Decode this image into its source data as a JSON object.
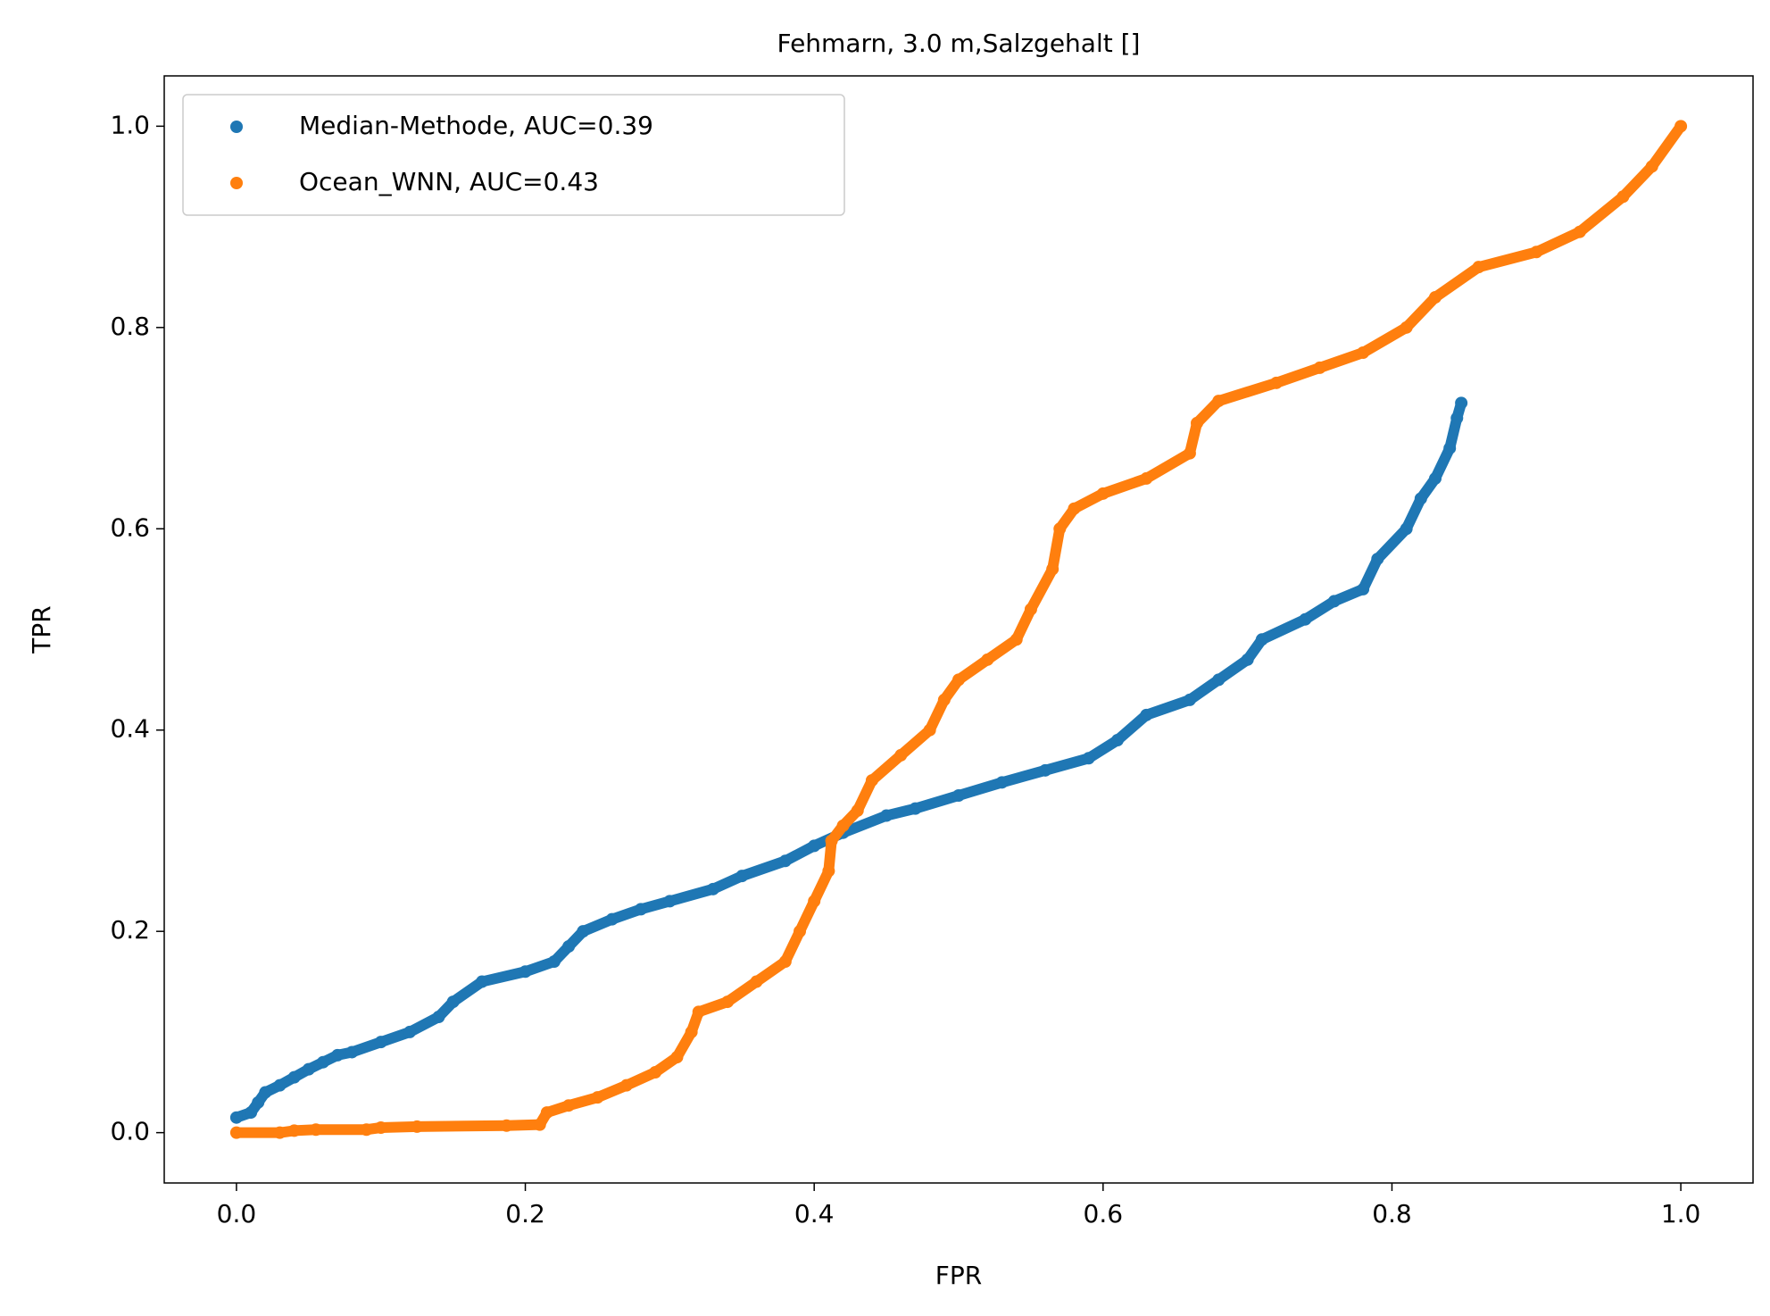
{
  "chart_data": {
    "type": "scatter",
    "title": "Fehmarn, 3.0 m,Salzgehalt []",
    "xlabel": "FPR",
    "ylabel": "TPR",
    "xlim": [
      -0.05,
      1.05
    ],
    "ylim": [
      -0.05,
      1.05
    ],
    "xticks": [
      {
        "value": 0,
        "label": "0.0"
      },
      0.2,
      0.4,
      0.6,
      0.8,
      {
        "value": 1,
        "label": "1.0"
      }
    ],
    "yticks": [
      {
        "value": 0,
        "label": "0.0"
      },
      0.2,
      0.4,
      0.6,
      0.8,
      {
        "value": 1,
        "label": "1.0"
      }
    ],
    "grid": false,
    "legend": "upper left",
    "series": [
      {
        "name": "Median-Methode, AUC=0.39",
        "color": "#1f77b4",
        "x": [
          0,
          0.01,
          0.015,
          0.02,
          0.03,
          0.04,
          0.05,
          0.06,
          0.07,
          0.08,
          0.1,
          0.12,
          0.14,
          0.15,
          0.17,
          0.2,
          0.22,
          0.23,
          0.24,
          0.26,
          0.28,
          0.3,
          0.33,
          0.35,
          0.38,
          0.4,
          0.42,
          0.45,
          0.47,
          0.5,
          0.53,
          0.56,
          0.59,
          0.61,
          0.63,
          0.66,
          0.68,
          0.7,
          0.71,
          0.74,
          0.76,
          0.78,
          0.79,
          0.81,
          0.82,
          0.83,
          0.84,
          0.845,
          0.848
        ],
        "values": [
          0.015,
          0.02,
          0.03,
          0.04,
          0.047,
          0.055,
          0.063,
          0.07,
          0.077,
          0.08,
          0.09,
          0.1,
          0.115,
          0.13,
          0.15,
          0.16,
          0.17,
          0.185,
          0.2,
          0.212,
          0.222,
          0.23,
          0.242,
          0.255,
          0.27,
          0.285,
          0.298,
          0.315,
          0.322,
          0.335,
          0.348,
          0.36,
          0.372,
          0.39,
          0.415,
          0.43,
          0.45,
          0.47,
          0.49,
          0.51,
          0.528,
          0.54,
          0.57,
          0.6,
          0.63,
          0.65,
          0.68,
          0.71,
          0.725
        ]
      },
      {
        "name": "Ocean_WNN, AUC=0.43",
        "color": "#ff7f0e",
        "x": [
          0,
          0.03,
          0.04,
          0.055,
          0.09,
          0.1,
          0.125,
          0.187,
          0.21,
          0.215,
          0.23,
          0.25,
          0.27,
          0.29,
          0.305,
          0.315,
          0.32,
          0.34,
          0.36,
          0.38,
          0.39,
          0.4,
          0.41,
          0.412,
          0.42,
          0.43,
          0.44,
          0.46,
          0.48,
          0.49,
          0.5,
          0.52,
          0.54,
          0.55,
          0.565,
          0.57,
          0.58,
          0.6,
          0.63,
          0.66,
          0.665,
          0.68,
          0.72,
          0.75,
          0.78,
          0.81,
          0.83,
          0.86,
          0.9,
          0.93,
          0.96,
          0.98,
          1.0
        ],
        "values": [
          0,
          0,
          0.002,
          0.003,
          0.003,
          0.005,
          0.006,
          0.007,
          0.008,
          0.02,
          0.027,
          0.035,
          0.047,
          0.06,
          0.075,
          0.1,
          0.12,
          0.13,
          0.15,
          0.17,
          0.2,
          0.23,
          0.26,
          0.29,
          0.305,
          0.32,
          0.35,
          0.375,
          0.4,
          0.43,
          0.45,
          0.47,
          0.49,
          0.52,
          0.56,
          0.6,
          0.62,
          0.635,
          0.65,
          0.675,
          0.705,
          0.727,
          0.745,
          0.76,
          0.775,
          0.8,
          0.83,
          0.86,
          0.875,
          0.895,
          0.93,
          0.96,
          1.0
        ]
      }
    ]
  }
}
